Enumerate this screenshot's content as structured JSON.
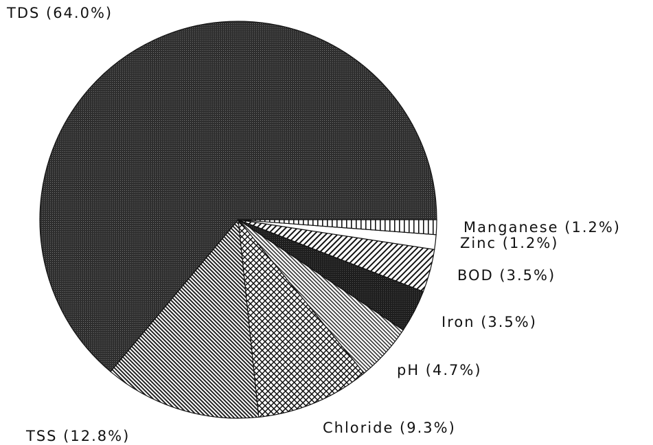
{
  "chart_data": {
    "type": "pie",
    "categories": [
      "TDS (64.0%)",
      "TSS (12.8%)",
      "Chloride (9.3%)",
      "pH (4.7%)",
      "Iron (3.5%)",
      "BOD (3.5%)",
      "Zinc (1.2%)",
      "Manganese (1.2%)"
    ],
    "values": [
      64.0,
      12.8,
      9.3,
      4.7,
      3.5,
      3.5,
      1.2,
      1.2
    ],
    "colors": [
      "#3a3a3a",
      "#8a8a8a",
      "#b0b0b0",
      "#9a9a9a",
      "#2a2a2a",
      "#7a7a7a",
      "#ffffff",
      "#cccccc"
    ]
  }
}
